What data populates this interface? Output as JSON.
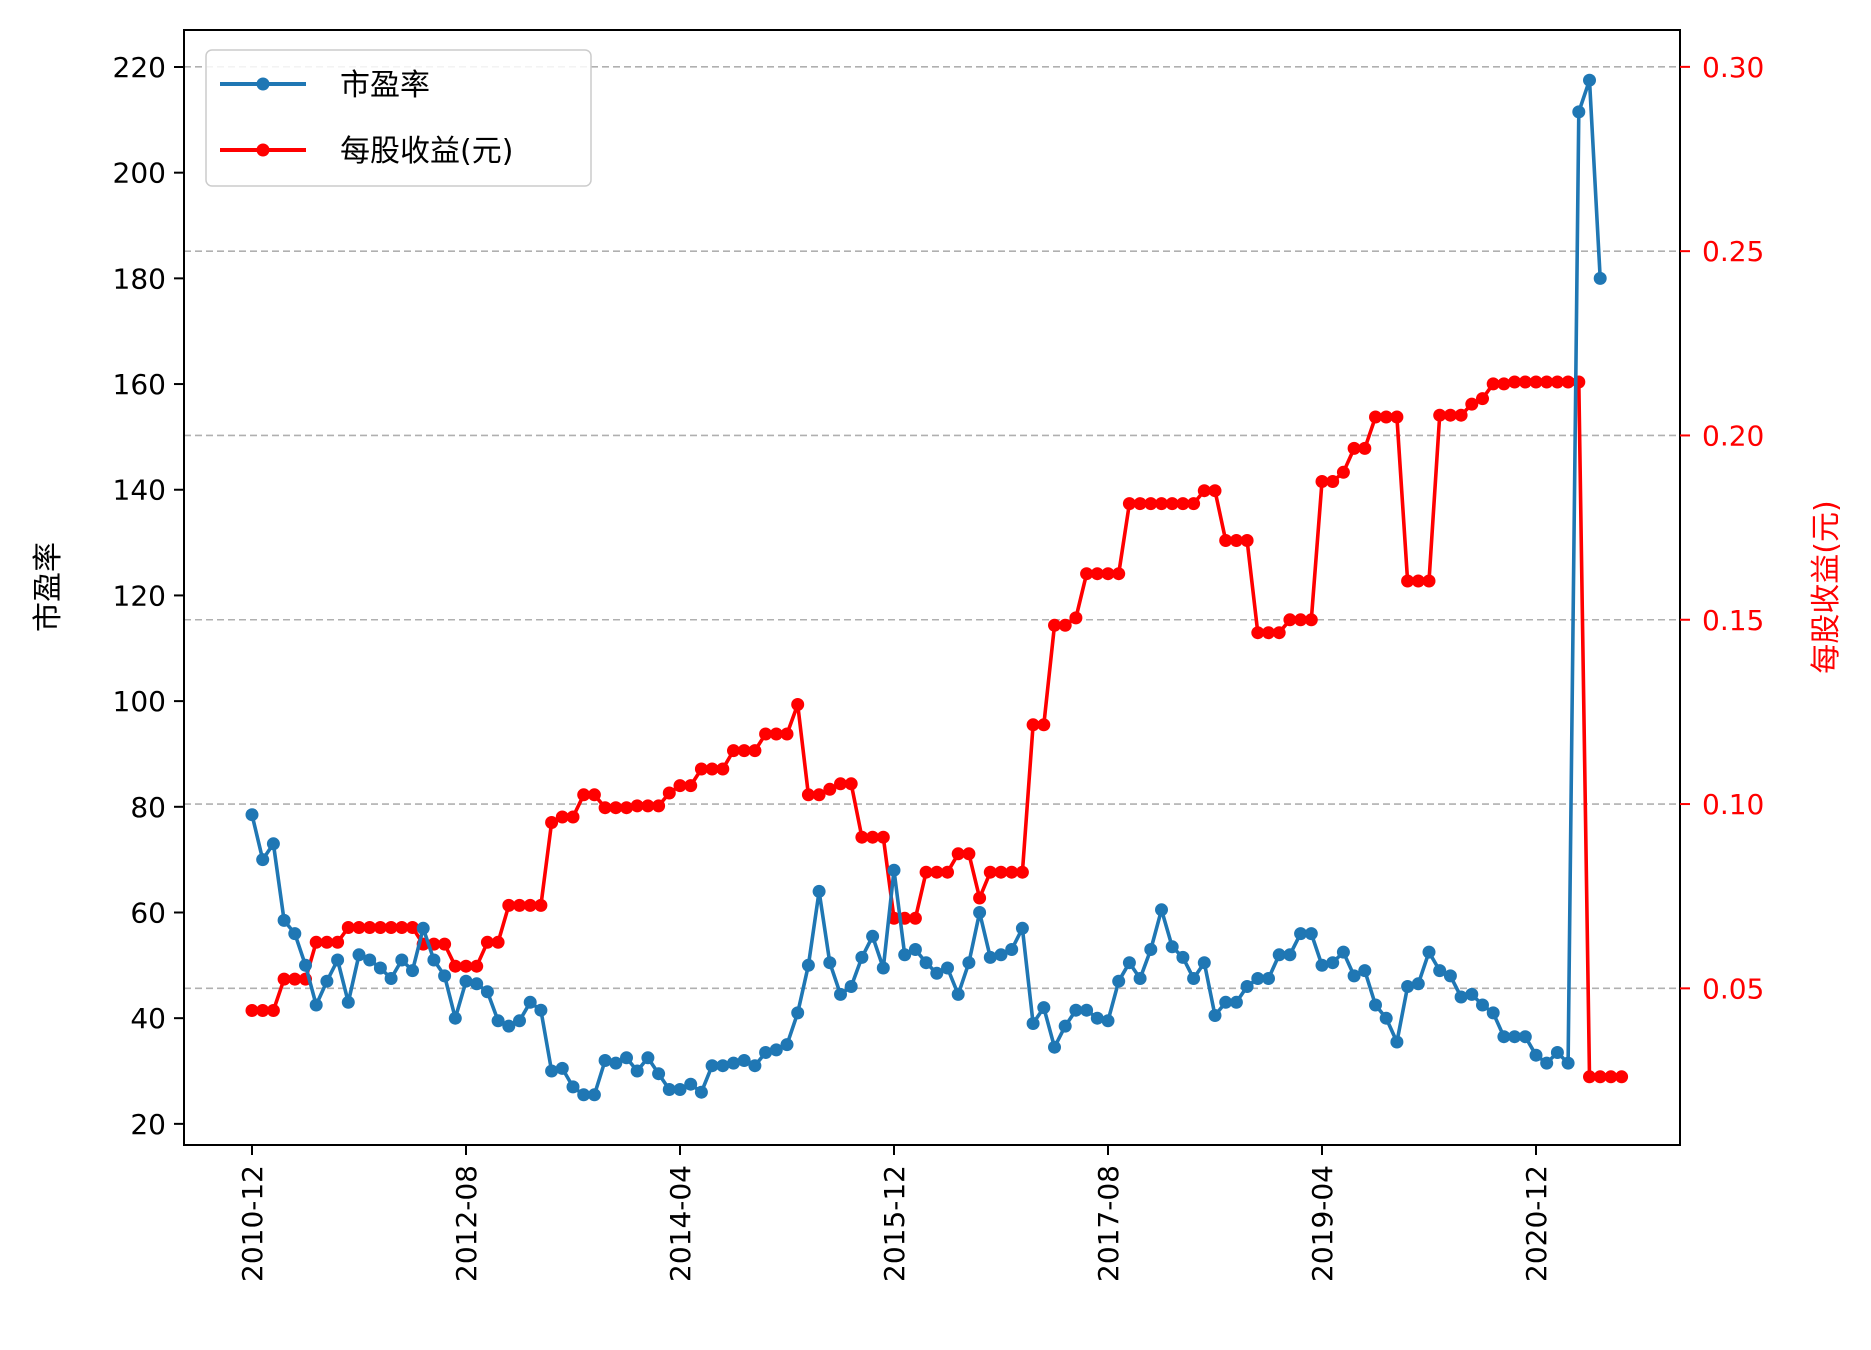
{
  "chart_data": {
    "type": "line",
    "title": "",
    "xlabel": "",
    "ylabel_left": "市盈率",
    "ylabel_right": "每股收益(元)",
    "grid": "horizontal dashed, right axis",
    "legend_position": "top-left",
    "colors": {
      "pe": "#1f77b4",
      "eps": "#ff0000",
      "grid": "#b0b0b0",
      "axis": "#000000"
    },
    "x_ticks": [
      "2010-12",
      "2012-08",
      "2014-04",
      "2015-12",
      "2017-08",
      "2019-04",
      "2020-12"
    ],
    "x_tick_index": [
      0,
      20,
      40,
      60,
      80,
      100,
      120
    ],
    "y_left": {
      "lim": [
        16,
        227
      ],
      "ticks": [
        "20",
        "40",
        "60",
        "80",
        "100",
        "120",
        "140",
        "160",
        "180",
        "200",
        "220"
      ]
    },
    "y_right": {
      "lim": [
        0.0075,
        0.31
      ],
      "ticks": [
        "0.05",
        "0.10",
        "0.15",
        "0.20",
        "0.25",
        "0.30"
      ]
    },
    "series": [
      {
        "name": "市盈率",
        "axis": "left",
        "values": [
          78.5,
          70,
          73,
          58.5,
          56,
          50,
          42.5,
          47,
          51,
          43,
          52,
          51,
          49.5,
          47.5,
          51,
          49,
          57,
          51,
          48,
          40,
          47,
          46.5,
          45,
          39.5,
          38.5,
          39.5,
          43,
          41.5,
          30,
          30.5,
          27,
          25.5,
          25.5,
          32,
          31.5,
          32.5,
          30,
          32.5,
          29.5,
          26.5,
          26.5,
          27.5,
          26,
          31,
          31,
          31.5,
          32,
          31,
          33.5,
          34,
          35,
          41,
          50,
          64,
          50.5,
          44.5,
          46,
          51.5,
          55.5,
          49.5,
          68,
          52,
          53,
          50.5,
          48.5,
          49.5,
          44.5,
          50.5,
          60,
          51.5,
          52,
          53,
          57,
          39,
          42,
          34.5,
          38.5,
          41.5,
          41.5,
          40,
          39.5,
          47,
          50.5,
          47.5,
          53,
          60.5,
          53.5,
          51.5,
          47.5,
          50.5,
          40.5,
          43,
          43,
          46,
          47.5,
          47.5,
          52,
          52,
          56,
          56,
          50,
          50.5,
          52.5,
          48,
          49,
          42.5,
          40,
          35.5,
          46,
          46.5,
          52.5,
          49,
          48,
          44,
          44.5,
          42.5,
          41,
          36.5,
          36.5,
          36.5,
          33,
          31.5,
          33.5,
          31.5,
          211.5,
          217.5,
          180
        ]
      },
      {
        "name": "每股收益(元)",
        "axis": "right",
        "values": [
          0.044,
          0.044,
          0.044,
          0.0525,
          0.0525,
          0.0525,
          0.0625,
          0.0625,
          0.0625,
          0.0665,
          0.0665,
          0.0665,
          0.0665,
          0.0665,
          0.0665,
          0.0665,
          0.062,
          0.062,
          0.062,
          0.056,
          0.056,
          0.056,
          0.0625,
          0.0625,
          0.0725,
          0.0725,
          0.0725,
          0.0725,
          0.095,
          0.0965,
          0.0965,
          0.1025,
          0.1025,
          0.099,
          0.099,
          0.099,
          0.0995,
          0.0995,
          0.0995,
          0.103,
          0.105,
          0.105,
          0.1095,
          0.1095,
          0.1095,
          0.1145,
          0.1145,
          0.1145,
          0.119,
          0.119,
          0.119,
          0.127,
          0.1025,
          0.1025,
          0.104,
          0.1055,
          0.1055,
          0.091,
          0.091,
          0.091,
          0.069,
          0.069,
          0.069,
          0.0815,
          0.0815,
          0.0815,
          0.0865,
          0.0865,
          0.0745,
          0.0815,
          0.0815,
          0.0815,
          0.0815,
          0.1215,
          0.1215,
          0.1485,
          0.1485,
          0.1505,
          0.1625,
          0.1625,
          0.1625,
          0.1625,
          0.1815,
          0.1815,
          0.1815,
          0.1815,
          0.1815,
          0.1815,
          0.1815,
          0.185,
          0.185,
          0.1715,
          0.1715,
          0.1715,
          0.1465,
          0.1465,
          0.1465,
          0.15,
          0.15,
          0.15,
          0.1875,
          0.1875,
          0.19,
          0.1965,
          0.1965,
          0.205,
          0.205,
          0.205,
          0.1605,
          0.1605,
          0.1605,
          0.2055,
          0.2055,
          0.2055,
          0.2085,
          0.21,
          0.214,
          0.214,
          0.2145,
          0.2145,
          0.2145,
          0.2145,
          0.2145,
          0.2145,
          0.2145,
          0.026,
          0.026,
          0.026,
          0.026
        ]
      }
    ]
  }
}
